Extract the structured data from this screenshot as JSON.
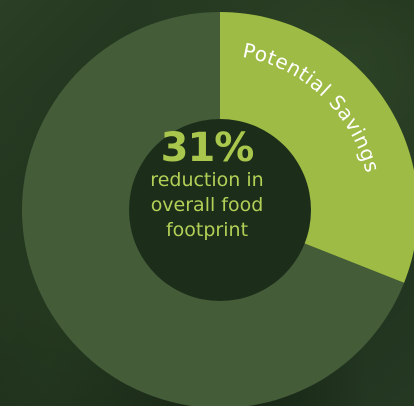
{
  "chart_data": {
    "type": "pie",
    "donut": true,
    "slices": [
      {
        "label": "Potential Savings",
        "value": 31,
        "color": "#9dbb45"
      },
      {
        "label": "",
        "value": 69,
        "color": "#455c39"
      }
    ],
    "center": {
      "value": "31%",
      "lines": [
        "reduction in",
        "overall food",
        "footprint"
      ]
    }
  },
  "colors": {
    "accent": "#a9c74c",
    "savings_slice": "#9dbb45",
    "remaining_slice": "#455c39",
    "center_hole": "#1c2e1a",
    "slice_label_text": "#ffffff"
  }
}
